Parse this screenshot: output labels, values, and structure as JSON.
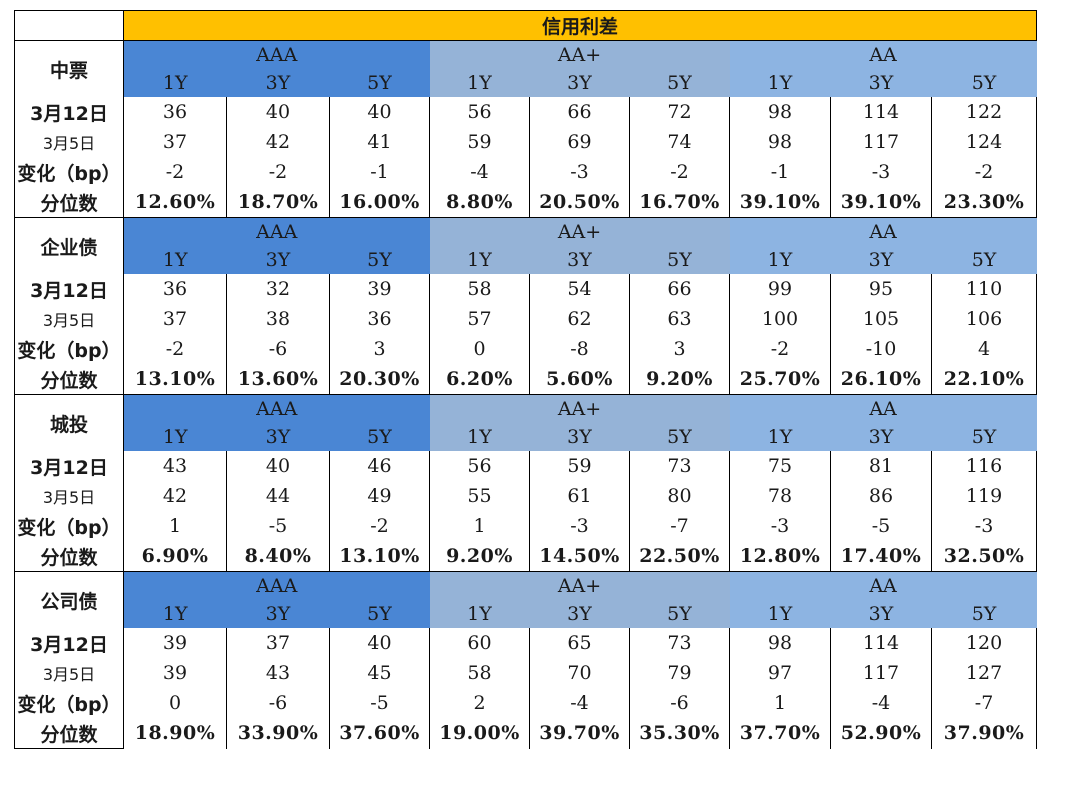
{
  "title": "信用利差",
  "groups": [
    {
      "name": "AAA",
      "style": "aaa"
    },
    {
      "name": "AA+",
      "style": "aap"
    },
    {
      "name": "AA",
      "style": "aa"
    }
  ],
  "tenors": [
    "1Y",
    "3Y",
    "5Y"
  ],
  "row_labels": {
    "current": "3月12日",
    "previous": "3月5日",
    "change": "变化（bp）",
    "percentile": "分位数"
  },
  "sections": [
    {
      "name": "中票",
      "current": [
        "36",
        "40",
        "40",
        "56",
        "66",
        "72",
        "98",
        "114",
        "122"
      ],
      "previous": [
        "37",
        "42",
        "41",
        "59",
        "69",
        "74",
        "98",
        "117",
        "124"
      ],
      "change": [
        "-2",
        "-2",
        "-1",
        "-4",
        "-3",
        "-2",
        "-1",
        "-3",
        "-2"
      ],
      "percentile": [
        "12.60%",
        "18.70%",
        "16.00%",
        "8.80%",
        "20.50%",
        "16.70%",
        "39.10%",
        "39.10%",
        "23.30%"
      ]
    },
    {
      "name": "企业债",
      "current": [
        "36",
        "32",
        "39",
        "58",
        "54",
        "66",
        "99",
        "95",
        "110"
      ],
      "previous": [
        "37",
        "38",
        "36",
        "57",
        "62",
        "63",
        "100",
        "105",
        "106"
      ],
      "change": [
        "-2",
        "-6",
        "3",
        "0",
        "-8",
        "3",
        "-2",
        "-10",
        "4"
      ],
      "percentile": [
        "13.10%",
        "13.60%",
        "20.30%",
        "6.20%",
        "5.60%",
        "9.20%",
        "25.70%",
        "26.10%",
        "22.10%"
      ]
    },
    {
      "name": "城投",
      "current": [
        "43",
        "40",
        "46",
        "56",
        "59",
        "73",
        "75",
        "81",
        "116"
      ],
      "previous": [
        "42",
        "44",
        "49",
        "55",
        "61",
        "80",
        "78",
        "86",
        "119"
      ],
      "change": [
        "1",
        "-5",
        "-2",
        "1",
        "-3",
        "-7",
        "-3",
        "-5",
        "-3"
      ],
      "percentile": [
        "6.90%",
        "8.40%",
        "13.10%",
        "9.20%",
        "14.50%",
        "22.50%",
        "12.80%",
        "17.40%",
        "32.50%"
      ]
    },
    {
      "name": "公司债",
      "current": [
        "39",
        "37",
        "40",
        "60",
        "65",
        "73",
        "98",
        "114",
        "120"
      ],
      "previous": [
        "39",
        "43",
        "45",
        "58",
        "70",
        "79",
        "97",
        "117",
        "127"
      ],
      "change": [
        "0",
        "-6",
        "-5",
        "2",
        "-4",
        "-6",
        "1",
        "-4",
        "-7"
      ],
      "percentile": [
        "18.90%",
        "33.90%",
        "37.60%",
        "19.00%",
        "39.70%",
        "35.30%",
        "37.70%",
        "52.90%",
        "37.90%"
      ]
    }
  ]
}
